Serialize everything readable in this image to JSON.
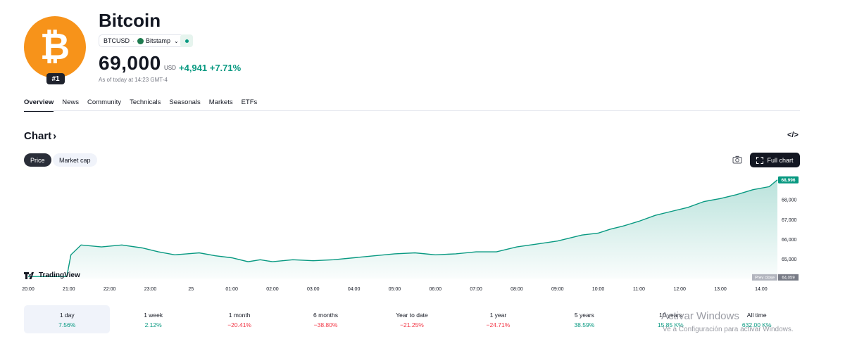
{
  "asset": {
    "name": "Bitcoin",
    "logo_glyph": "₿",
    "rank": "#1",
    "symbol": "BTCUSD",
    "exchange": "Bitstamp",
    "price": "69,000",
    "currency": "USD",
    "change": "+4,941 +7.71%",
    "as_of": "As of today at 14:23 GMT-4",
    "brand_color": "#f7931a"
  },
  "tabs": [
    "Overview",
    "News",
    "Community",
    "Technicals",
    "Seasonals",
    "Markets",
    "ETFs"
  ],
  "chart_section": {
    "heading": "Chart",
    "embed_icon": "</>",
    "toggle_price": "Price",
    "toggle_mcap": "Market cap",
    "full_chart": "Full chart",
    "tradingview": "TradingView"
  },
  "chart_data": {
    "type": "area",
    "x_tick_labels": [
      "20:00",
      "21:00",
      "22:00",
      "23:00",
      "25",
      "01:00",
      "02:00",
      "03:00",
      "04:00",
      "05:00",
      "06:00",
      "07:00",
      "08:00",
      "09:00",
      "10:00",
      "11:00",
      "12:00",
      "13:00",
      "14:00"
    ],
    "y_tick_labels": [
      "68,000",
      "67,000",
      "66,000",
      "65,000"
    ],
    "ylim": [
      64000,
      69200
    ],
    "series": [
      {
        "x": [
          20.0,
          20.5,
          20.95,
          21.05,
          21.3,
          21.8,
          22.3,
          22.8,
          23.2,
          23.6,
          23.9,
          24.2,
          24.6,
          25.0,
          25.4,
          25.7,
          26.0,
          26.5,
          27.0,
          27.5,
          28.0,
          28.5,
          29.0,
          29.5,
          30.0,
          30.5,
          31.0,
          31.5,
          32.0,
          32.5,
          33.0,
          33.3,
          33.6,
          34.0,
          34.3,
          34.6,
          35.0,
          35.4,
          35.8,
          36.2,
          36.6,
          37.0,
          37.4,
          37.8,
          38.2,
          38.4
        ],
        "y": [
          64100,
          64100,
          64100,
          65200,
          65700,
          65600,
          65700,
          65550,
          65350,
          65200,
          65250,
          65300,
          65150,
          65050,
          64850,
          64950,
          64850,
          64950,
          64900,
          64950,
          65050,
          65150,
          65250,
          65300,
          65200,
          65250,
          65350,
          65350,
          65600,
          65750,
          65900,
          66050,
          66200,
          66300,
          66500,
          66650,
          66900,
          67200,
          67400,
          67600,
          67900,
          68050,
          68250,
          68500,
          68650,
          68996
        ]
      }
    ],
    "last_label": "68,996",
    "prev_close_label": "Prev close",
    "prev_close_value": "64,059",
    "line_color": "#089981"
  },
  "ranges": [
    {
      "label": "1 day",
      "pct": "7.56%",
      "dir": "up"
    },
    {
      "label": "1 week",
      "pct": "2.12%",
      "dir": "up"
    },
    {
      "label": "1 month",
      "pct": "−20.41%",
      "dir": "down"
    },
    {
      "label": "6 months",
      "pct": "−38.80%",
      "dir": "down"
    },
    {
      "label": "Year to date",
      "pct": "−21.25%",
      "dir": "down"
    },
    {
      "label": "1 year",
      "pct": "−24.71%",
      "dir": "down"
    },
    {
      "label": "5 years",
      "pct": "38.59%",
      "dir": "up"
    },
    {
      "label": "10 years",
      "pct": "15.85 K%",
      "dir": "up"
    },
    {
      "label": "All time",
      "pct": "632.00 K%",
      "dir": "up"
    }
  ],
  "watermark": {
    "line1": "Activar Windows",
    "line2": "Ve a Configuración para activar Windows."
  }
}
